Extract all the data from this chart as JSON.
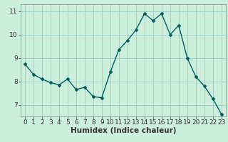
{
  "x": [
    0,
    1,
    2,
    3,
    4,
    5,
    6,
    7,
    8,
    9,
    10,
    11,
    12,
    13,
    14,
    15,
    16,
    17,
    18,
    19,
    20,
    21,
    22,
    23
  ],
  "y": [
    8.75,
    8.3,
    8.1,
    7.95,
    7.85,
    8.1,
    7.65,
    7.75,
    7.35,
    7.3,
    8.4,
    9.35,
    9.75,
    10.2,
    10.9,
    10.6,
    10.9,
    10.0,
    10.4,
    9.0,
    8.2,
    7.8,
    7.25,
    6.6
  ],
  "line_color": "#006060",
  "marker": "D",
  "marker_size": 2,
  "bg_color": "#cceedd",
  "grid_color": "#99cccc",
  "xlabel": "Humidex (Indice chaleur)",
  "xlim": [
    -0.5,
    23.5
  ],
  "ylim": [
    6.5,
    11.3
  ],
  "yticks": [
    7,
    8,
    9,
    10,
    11
  ],
  "xticks": [
    0,
    1,
    2,
    3,
    4,
    5,
    6,
    7,
    8,
    9,
    10,
    11,
    12,
    13,
    14,
    15,
    16,
    17,
    18,
    19,
    20,
    21,
    22,
    23
  ],
  "tick_fontsize": 6.5,
  "xlabel_fontsize": 7.5,
  "linewidth": 1.0
}
